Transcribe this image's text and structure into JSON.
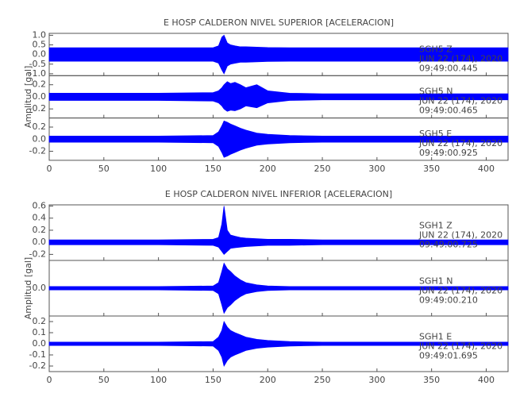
{
  "chart_data": [
    {
      "type": "area",
      "title": "E HOSP CALDERON NIVEL SUPERIOR [ACELERACION]",
      "y_label": "Amplitud [gal]",
      "xlim": [
        0,
        420
      ],
      "xticks": [
        0,
        50,
        100,
        150,
        200,
        250,
        300,
        350,
        400
      ],
      "color": "#0000ff",
      "panels": [
        {
          "station": "SGH5 Z",
          "date": "JUN 22 (174), 2020",
          "time": "09:49:00.445",
          "ylim": [
            -1.1,
            1.1
          ],
          "yticks": [
            {
              "value": 1,
              "label": "1.0"
            },
            {
              "value": 0.5,
              "label": "0.5"
            },
            {
              "value": 0,
              "label": "0.0"
            },
            {
              "value": -0.5,
              "label": "-0.5"
            },
            {
              "value": -1,
              "label": "-1.0"
            }
          ],
          "x": [
            0,
            50,
            100,
            150,
            155,
            158,
            160,
            163,
            166,
            170,
            175,
            180,
            190,
            200,
            220,
            250,
            300,
            350,
            420
          ],
          "upper": [
            0.35,
            0.35,
            0.35,
            0.35,
            0.45,
            0.9,
            1.0,
            0.6,
            0.5,
            0.45,
            0.4,
            0.4,
            0.38,
            0.36,
            0.35,
            0.35,
            0.35,
            0.35,
            0.35
          ],
          "lower": [
            -0.35,
            -0.35,
            -0.35,
            -0.35,
            -0.45,
            -0.8,
            -1.0,
            -0.6,
            -0.5,
            -0.45,
            -0.4,
            -0.4,
            -0.38,
            -0.36,
            -0.35,
            -0.35,
            -0.35,
            -0.35,
            -0.35
          ]
        },
        {
          "station": "SGH5 N",
          "date": "JUN 22 (174), 2020",
          "time": "09:49:00.465",
          "ylim": [
            -0.35,
            0.35
          ],
          "yticks": [
            {
              "value": 0.2,
              "label": "0.2"
            },
            {
              "value": 0,
              "label": "0.0"
            },
            {
              "value": -0.2,
              "label": "-0.2"
            }
          ],
          "x": [
            0,
            50,
            100,
            150,
            155,
            158,
            160,
            163,
            166,
            170,
            175,
            180,
            190,
            200,
            220,
            250,
            300,
            350,
            420
          ],
          "upper": [
            0.06,
            0.06,
            0.06,
            0.07,
            0.1,
            0.15,
            0.2,
            0.25,
            0.22,
            0.24,
            0.2,
            0.15,
            0.2,
            0.1,
            0.06,
            0.05,
            0.05,
            0.05,
            0.05
          ],
          "lower": [
            -0.06,
            -0.06,
            -0.06,
            -0.07,
            -0.1,
            -0.15,
            -0.2,
            -0.24,
            -0.22,
            -0.23,
            -0.2,
            -0.15,
            -0.18,
            -0.1,
            -0.06,
            -0.05,
            -0.05,
            -0.05,
            -0.05
          ]
        },
        {
          "station": "SGH5 E",
          "date": "JUN 22 (174), 2020",
          "time": "09:49:00.925",
          "ylim": [
            -0.35,
            0.35
          ],
          "yticks": [
            {
              "value": 0.2,
              "label": "0.2"
            },
            {
              "value": 0,
              "label": "0.0"
            },
            {
              "value": -0.2,
              "label": "-0.2"
            }
          ],
          "x": [
            0,
            50,
            100,
            150,
            155,
            158,
            160,
            163,
            166,
            170,
            175,
            180,
            190,
            200,
            220,
            250,
            300,
            350,
            420
          ],
          "upper": [
            0.05,
            0.05,
            0.05,
            0.06,
            0.12,
            0.22,
            0.3,
            0.28,
            0.25,
            0.22,
            0.18,
            0.15,
            0.1,
            0.08,
            0.06,
            0.05,
            0.05,
            0.05,
            0.05
          ],
          "lower": [
            -0.05,
            -0.05,
            -0.05,
            -0.06,
            -0.12,
            -0.22,
            -0.3,
            -0.28,
            -0.25,
            -0.22,
            -0.18,
            -0.15,
            -0.1,
            -0.08,
            -0.06,
            -0.05,
            -0.05,
            -0.05,
            -0.05
          ]
        }
      ]
    },
    {
      "type": "area",
      "title": "E HOSP CALDERON NIVEL INFERIOR [ACELERACION]",
      "y_label": "Amplitud [gal]",
      "xlim": [
        0,
        420
      ],
      "xticks": [
        0,
        50,
        100,
        150,
        200,
        250,
        300,
        350,
        400
      ],
      "color": "#0000ff",
      "panels": [
        {
          "station": "SGH1 Z",
          "date": "JUN 22 (174), 2020",
          "time": "09:49:00.725",
          "ylim": [
            -0.3,
            0.62
          ],
          "yticks": [
            {
              "value": 0.6,
              "label": "0.6"
            },
            {
              "value": 0.4,
              "label": "0.4"
            },
            {
              "value": 0.2,
              "label": "0.2"
            },
            {
              "value": 0,
              "label": "0.0"
            },
            {
              "value": -0.2,
              "label": "-0.2"
            }
          ],
          "x": [
            0,
            50,
            100,
            150,
            155,
            158,
            160,
            163,
            166,
            170,
            175,
            180,
            190,
            200,
            220,
            250,
            300,
            350,
            420
          ],
          "upper": [
            0.04,
            0.04,
            0.04,
            0.05,
            0.08,
            0.3,
            0.6,
            0.2,
            0.12,
            0.1,
            0.08,
            0.07,
            0.06,
            0.05,
            0.05,
            0.04,
            0.04,
            0.04,
            0.04
          ],
          "lower": [
            -0.04,
            -0.04,
            -0.04,
            -0.05,
            -0.08,
            -0.15,
            -0.2,
            -0.15,
            -0.1,
            -0.09,
            -0.08,
            -0.07,
            -0.06,
            -0.05,
            -0.05,
            -0.04,
            -0.04,
            -0.04,
            -0.04
          ]
        },
        {
          "station": "SGH1 N",
          "date": "JUN 22 (174), 2020",
          "time": "09:49:00.210",
          "ylim": [
            -0.5,
            0.5
          ],
          "yticks": [
            {
              "value": 0,
              "label": "0.0"
            }
          ],
          "x": [
            0,
            50,
            100,
            150,
            155,
            158,
            160,
            163,
            166,
            170,
            175,
            180,
            190,
            200,
            220,
            250,
            300,
            350,
            420
          ],
          "upper": [
            0.03,
            0.03,
            0.03,
            0.04,
            0.1,
            0.3,
            0.45,
            0.35,
            0.3,
            0.22,
            0.15,
            0.1,
            0.06,
            0.04,
            0.03,
            0.03,
            0.03,
            0.03,
            0.03
          ],
          "lower": [
            -0.03,
            -0.03,
            -0.03,
            -0.04,
            -0.1,
            -0.3,
            -0.45,
            -0.35,
            -0.3,
            -0.22,
            -0.15,
            -0.1,
            -0.06,
            -0.04,
            -0.03,
            -0.03,
            -0.03,
            -0.03,
            -0.03
          ]
        },
        {
          "station": "SGH1 E",
          "date": "JUN 22 (174), 2020",
          "time": "09:49:01.695",
          "ylim": [
            -0.25,
            0.25
          ],
          "yticks": [
            {
              "value": 0.2,
              "label": "0.2"
            },
            {
              "value": 0.1,
              "label": "0.1"
            },
            {
              "value": 0,
              "label": "0.0"
            },
            {
              "value": -0.1,
              "label": "-0.1"
            },
            {
              "value": -0.2,
              "label": "-0.2"
            }
          ],
          "x": [
            0,
            50,
            100,
            150,
            155,
            158,
            160,
            163,
            166,
            170,
            175,
            180,
            190,
            200,
            220,
            250,
            300,
            350,
            420
          ],
          "upper": [
            0.015,
            0.015,
            0.015,
            0.02,
            0.06,
            0.12,
            0.2,
            0.15,
            0.12,
            0.1,
            0.08,
            0.06,
            0.04,
            0.03,
            0.02,
            0.015,
            0.015,
            0.015,
            0.015
          ],
          "lower": [
            -0.015,
            -0.015,
            -0.015,
            -0.02,
            -0.06,
            -0.12,
            -0.2,
            -0.15,
            -0.12,
            -0.1,
            -0.08,
            -0.06,
            -0.04,
            -0.03,
            -0.02,
            -0.015,
            -0.015,
            -0.015,
            -0.015
          ]
        }
      ]
    }
  ]
}
